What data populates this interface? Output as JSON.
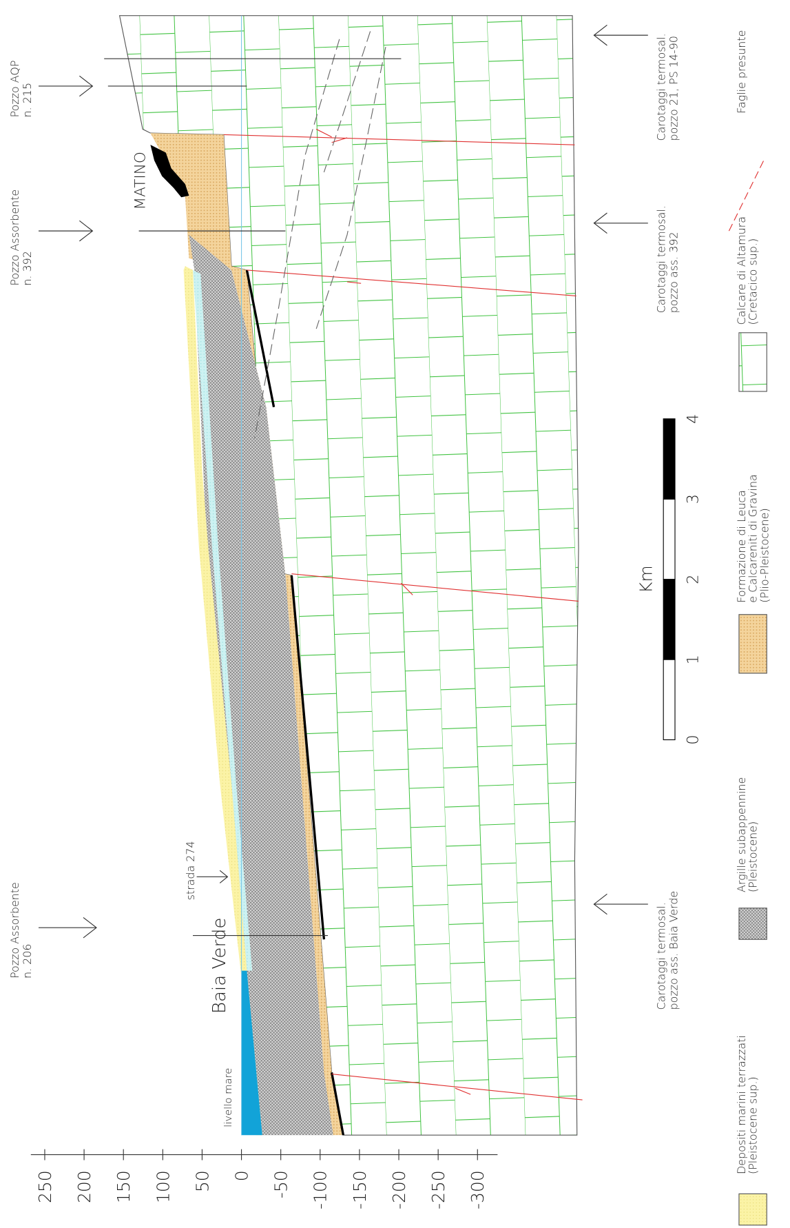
{
  "elevation_axis": {
    "ticks": [
      250,
      200,
      150,
      100,
      50,
      0,
      -50,
      -100,
      -150,
      -200,
      -250,
      -300
    ]
  },
  "wells": [
    {
      "lines": [
        "Pozzo Assorbente",
        "n. 206"
      ]
    },
    {
      "lines": [
        "Pozzo Assorbente",
        "n. 392"
      ]
    },
    {
      "lines": [
        "Pozzo AQP",
        "n. 215"
      ]
    }
  ],
  "logs": [
    {
      "lines": [
        "Carotaggi termosal.",
        "pozzo ass. Baia Verde"
      ]
    },
    {
      "lines": [
        "Carotaggi termosal.",
        "pozzo ass. 392"
      ]
    },
    {
      "lines": [
        "Carotaggi termosal.",
        "pozzo 21, PS 14-90"
      ]
    }
  ],
  "places": {
    "town": "MATINO",
    "coast": "Baia Verde",
    "road": "strada 274",
    "sea_level": "livello mare"
  },
  "scale_bar": {
    "unit": "Km",
    "ticks": [
      0,
      1,
      2,
      3,
      4
    ]
  },
  "legend": [
    {
      "lines": [
        "Depositi marini terrazzati",
        "(Pleistocene sup.)"
      ]
    },
    {
      "lines": [
        "Argille subappennine",
        "(Pleistocene)"
      ]
    },
    {
      "lines": [
        "Formazione di Leuca",
        "e Calcareniti di Gravina",
        "(Plio-Pleistocene)"
      ]
    },
    {
      "lines": [
        "Calcare di Altamura",
        "(Cretacico sup.)"
      ]
    },
    {
      "lines": [
        "Faglie presunte"
      ]
    }
  ]
}
